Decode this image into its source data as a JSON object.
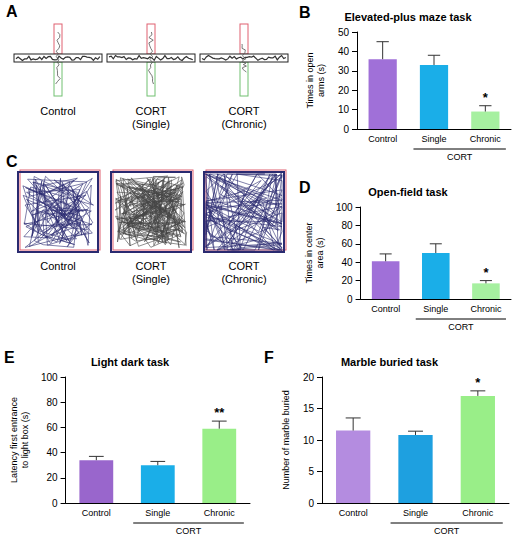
{
  "images": [
    {
      "letter": "A",
      "type": "maze",
      "captions": [
        "Control",
        "CORT (Single)",
        "CORT (Chronic)"
      ]
    },
    {
      "letter": "C",
      "type": "open_field",
      "captions": [
        "Control",
        "CORT (Single)",
        "CORT (Chronic)"
      ]
    }
  ],
  "chart_data": [
    {
      "letter": "B",
      "type": "bar",
      "title": "Elevated-plus maze task",
      "y_label": "Times in open arms (s)",
      "categories": [
        "Control",
        "Single",
        "Chronic"
      ],
      "group_label": "CORT",
      "group_categories": [
        "Single",
        "Chronic"
      ],
      "values": [
        36,
        33,
        9
      ],
      "errors": [
        9,
        5,
        3
      ],
      "significance": [
        null,
        null,
        "*"
      ],
      "colors": [
        "#A070D8",
        "#1AAEE8",
        "#A6F0A0"
      ],
      "ylim": [
        0,
        50
      ],
      "yticks": [
        0,
        10,
        20,
        30,
        40,
        50
      ],
      "grid": false
    },
    {
      "letter": "D",
      "type": "bar",
      "title": "Open-field task",
      "y_label": "Times in center area (s)",
      "categories": [
        "Control",
        "Single",
        "Chronic"
      ],
      "group_label": "CORT",
      "group_categories": [
        "Single",
        "Chronic"
      ],
      "values": [
        41,
        50,
        17
      ],
      "errors": [
        8,
        10,
        3
      ],
      "significance": [
        null,
        null,
        "*"
      ],
      "colors": [
        "#A070D8",
        "#1AAEE8",
        "#A6F0A0"
      ],
      "ylim": [
        0,
        100
      ],
      "yticks": [
        0,
        20,
        40,
        60,
        80,
        100
      ],
      "grid": false
    },
    {
      "letter": "E",
      "type": "bar",
      "title": "Light dark task",
      "y_label": "Latency first entrance to light box (s)",
      "categories": [
        "Control",
        "Single",
        "Chronic"
      ],
      "group_label": "CORT",
      "group_categories": [
        "Single",
        "Chronic"
      ],
      "values": [
        34,
        30,
        59
      ],
      "errors": [
        3,
        3,
        6
      ],
      "significance": [
        null,
        null,
        "**"
      ],
      "colors": [
        "#9966CC",
        "#1AAEE8",
        "#99EE88"
      ],
      "ylim": [
        0,
        100
      ],
      "yticks": [
        0,
        20,
        40,
        60,
        80,
        100
      ],
      "grid": false
    },
    {
      "letter": "F",
      "type": "bar",
      "title": "Marble buried task",
      "y_label": "Number of marble buried",
      "categories": [
        "Control",
        "Single",
        "Chronic"
      ],
      "group_label": "CORT",
      "group_categories": [
        "Single",
        "Chronic"
      ],
      "values": [
        11.5,
        10.8,
        17
      ],
      "errors": [
        2,
        0.6,
        0.8
      ],
      "significance": [
        null,
        null,
        "*"
      ],
      "colors": [
        "#B48CE0",
        "#1EA0E0",
        "#99EE88"
      ],
      "ylim": [
        0,
        20
      ],
      "yticks": [
        0,
        5,
        10,
        15,
        20
      ],
      "grid": false
    }
  ]
}
